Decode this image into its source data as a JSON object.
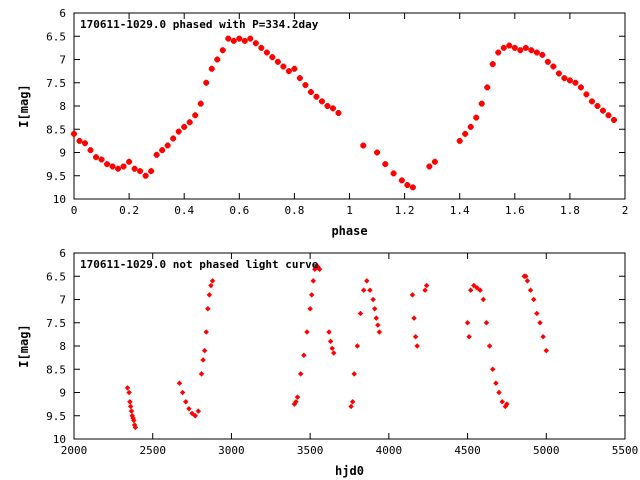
{
  "chart_data": [
    {
      "type": "scatter",
      "title": "170611-1029.0 phased with P=334.2day",
      "xlabel": "phase",
      "ylabel": "I[mag]",
      "xlim": [
        0,
        2
      ],
      "ylim": [
        10,
        6
      ],
      "y_inverted": true,
      "xticks": [
        0,
        0.2,
        0.4,
        0.6,
        0.8,
        1,
        1.2,
        1.4,
        1.6,
        1.8,
        2
      ],
      "xtick_labels": [
        "0",
        "0.2",
        "0.4",
        "0.6",
        "0.8",
        "1",
        "1.2",
        "1.4",
        "1.6",
        "1.8",
        "2"
      ],
      "yticks": [
        6,
        6.5,
        7,
        7.5,
        8,
        8.5,
        9,
        9.5,
        10
      ],
      "ytick_labels": [
        "6",
        "6.5",
        "7",
        "7.5",
        "8",
        "8.5",
        "9",
        "9.5",
        "10"
      ],
      "grid": false,
      "marker_color": "#ff0000",
      "marker": "cross",
      "series": [
        {
          "x": [
            0.0,
            0.02,
            0.04,
            0.06,
            0.08,
            0.1,
            0.12,
            0.14,
            0.16,
            0.18,
            0.2,
            0.22,
            0.24,
            0.26,
            0.28,
            0.3,
            0.32,
            0.34,
            0.36,
            0.38,
            0.4,
            0.42,
            0.44,
            0.46,
            0.48,
            0.5,
            0.52,
            0.54,
            0.56,
            0.58,
            0.6,
            0.62,
            0.64,
            0.66,
            0.68,
            0.7,
            0.72,
            0.74,
            0.76,
            0.78,
            0.8,
            0.82,
            0.84,
            0.86,
            0.88,
            0.9,
            0.92,
            0.94,
            0.96,
            1.05,
            1.1,
            1.13,
            1.16,
            1.19,
            1.21,
            1.23,
            1.29,
            1.31,
            1.4,
            1.42,
            1.44,
            1.46,
            1.48,
            1.5,
            1.52,
            1.54,
            1.56,
            1.58,
            1.6,
            1.62,
            1.64,
            1.66,
            1.68,
            1.7,
            1.72,
            1.74,
            1.76,
            1.78,
            1.8,
            1.82,
            1.84,
            1.86,
            1.88,
            1.9,
            1.92,
            1.94,
            1.96
          ],
          "y": [
            8.6,
            8.75,
            8.8,
            8.95,
            9.1,
            9.15,
            9.25,
            9.3,
            9.35,
            9.3,
            9.2,
            9.35,
            9.4,
            9.5,
            9.4,
            9.05,
            8.95,
            8.85,
            8.7,
            8.55,
            8.45,
            8.35,
            8.2,
            7.95,
            7.5,
            7.2,
            7.0,
            6.8,
            6.55,
            6.6,
            6.55,
            6.6,
            6.55,
            6.65,
            6.75,
            6.85,
            6.95,
            7.05,
            7.15,
            7.25,
            7.2,
            7.4,
            7.55,
            7.7,
            7.8,
            7.9,
            8.0,
            8.05,
            8.15,
            8.85,
            9.0,
            9.25,
            9.45,
            9.6,
            9.7,
            9.75,
            9.3,
            9.2,
            8.75,
            8.6,
            8.45,
            8.25,
            7.95,
            7.6,
            7.1,
            6.85,
            6.75,
            6.7,
            6.75,
            6.8,
            6.75,
            6.8,
            6.85,
            6.9,
            7.05,
            7.15,
            7.3,
            7.4,
            7.45,
            7.5,
            7.6,
            7.75,
            7.9,
            8.0,
            8.1,
            8.2,
            8.3
          ]
        }
      ]
    },
    {
      "type": "scatter",
      "title": "170611-1029.0 not phased light curve",
      "xlabel": "hjd0",
      "ylabel": "I[mag]",
      "xlim": [
        2000,
        5500
      ],
      "ylim": [
        10,
        6
      ],
      "y_inverted": true,
      "xticks": [
        2000,
        2500,
        3000,
        3500,
        4000,
        4500,
        5000,
        5500
      ],
      "xtick_labels": [
        "2000",
        "2500",
        "3000",
        "3500",
        "4000",
        "4500",
        "5000",
        "5500"
      ],
      "yticks": [
        6,
        6.5,
        7,
        7.5,
        8,
        8.5,
        9,
        9.5,
        10
      ],
      "ytick_labels": [
        "6",
        "6.5",
        "7",
        "7.5",
        "8",
        "8.5",
        "9",
        "9.5",
        "10"
      ],
      "grid": false,
      "marker_color": "#ff0000",
      "marker": "diamond",
      "series": [
        {
          "x": [
            2340,
            2350,
            2355,
            2360,
            2365,
            2370,
            2375,
            2380,
            2385,
            2390,
            2670,
            2690,
            2710,
            2730,
            2750,
            2770,
            2790,
            2810,
            2820,
            2830,
            2840,
            2850,
            2860,
            2870,
            2880,
            3400,
            3410,
            3420,
            3440,
            3460,
            3480,
            3500,
            3510,
            3520,
            3530,
            3540,
            3550,
            3560,
            3620,
            3630,
            3640,
            3650,
            3760,
            3770,
            3780,
            3800,
            3820,
            3840,
            3860,
            3880,
            3900,
            3910,
            3920,
            3930,
            3940,
            4150,
            4160,
            4170,
            4180,
            4230,
            4240,
            4500,
            4510,
            4520,
            4540,
            4560,
            4580,
            4600,
            4620,
            4640,
            4660,
            4680,
            4700,
            4720,
            4740,
            4750,
            4860,
            4870,
            4880,
            4900,
            4920,
            4940,
            4960,
            4980,
            5000
          ],
          "y": [
            8.9,
            9.0,
            9.2,
            9.3,
            9.4,
            9.5,
            9.55,
            9.6,
            9.7,
            9.75,
            8.8,
            9.0,
            9.2,
            9.35,
            9.45,
            9.5,
            9.4,
            8.6,
            8.3,
            8.1,
            7.7,
            7.2,
            6.9,
            6.7,
            6.6,
            9.25,
            9.2,
            9.1,
            8.6,
            8.2,
            7.7,
            7.2,
            6.9,
            6.6,
            6.35,
            6.3,
            6.3,
            6.35,
            7.7,
            7.9,
            8.05,
            8.15,
            9.3,
            9.2,
            8.6,
            8.0,
            7.3,
            6.8,
            6.6,
            6.8,
            7.0,
            7.2,
            7.4,
            7.55,
            7.7,
            6.9,
            7.4,
            7.8,
            8.0,
            6.8,
            6.7,
            7.5,
            7.8,
            6.8,
            6.7,
            6.75,
            6.8,
            7.0,
            7.5,
            8.0,
            8.5,
            8.8,
            9.0,
            9.2,
            9.3,
            9.25,
            6.5,
            6.5,
            6.6,
            6.8,
            7.0,
            7.3,
            7.5,
            7.8,
            8.1
          ]
        }
      ]
    }
  ]
}
